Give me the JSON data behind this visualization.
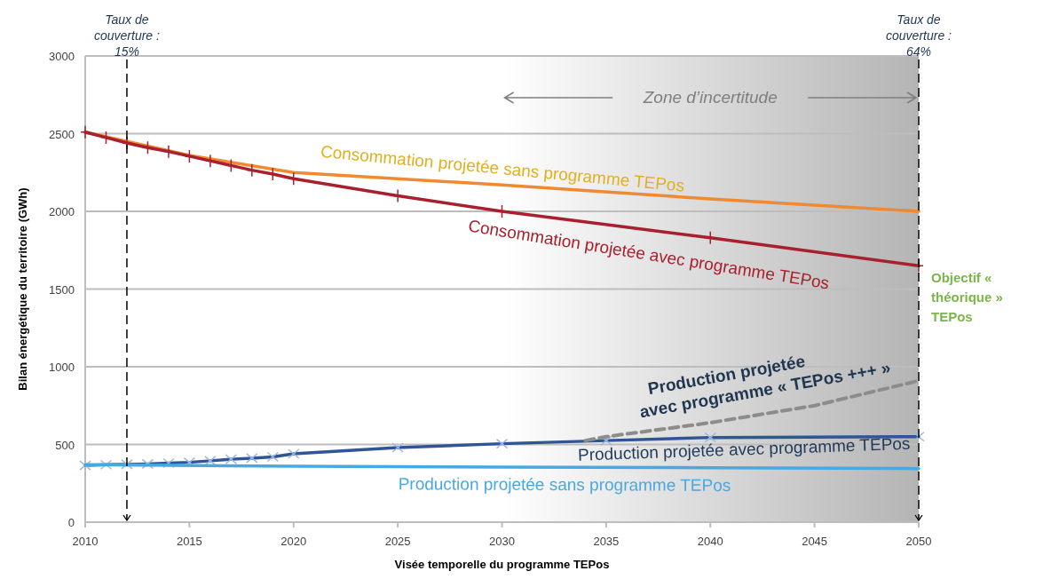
{
  "chart_data": {
    "type": "line",
    "xlabel": "Visée temporelle du programme TEPos",
    "ylabel": "Bilan énergétique du territoire (GWh)",
    "xlim": [
      2010,
      2050
    ],
    "xticks": [
      2010,
      2015,
      2020,
      2025,
      2030,
      2035,
      2040,
      2045,
      2050
    ],
    "ylim": [
      0,
      3000
    ],
    "yticks": [
      0,
      500,
      1000,
      1500,
      2000,
      2500,
      3000
    ],
    "grid": "y",
    "series": [
      {
        "name": "Consommation projetée sans programme TEPos",
        "color": "#f08a30",
        "marker": "none",
        "x": [
          2010,
          2015,
          2020,
          2030,
          2040,
          2050
        ],
        "values": [
          2510,
          2360,
          2250,
          2170,
          2080,
          2000
        ]
      },
      {
        "name": "Consommation projetée avec programme TEPos",
        "color": "#a8202e",
        "marker": "cross",
        "x": [
          2010,
          2011,
          2012,
          2013,
          2014,
          2015,
          2016,
          2017,
          2018,
          2019,
          2020,
          2025,
          2030,
          2040,
          2050
        ],
        "values": [
          2510,
          2475,
          2440,
          2410,
          2385,
          2355,
          2325,
          2295,
          2265,
          2240,
          2210,
          2100,
          2000,
          1830,
          1650
        ]
      },
      {
        "name": "Production projetée avec programme TEPos",
        "color": "#2f5597",
        "marker": "cross",
        "x": [
          2010,
          2011,
          2012,
          2013,
          2014,
          2015,
          2016,
          2017,
          2018,
          2019,
          2020,
          2025,
          2030,
          2035,
          2040,
          2050
        ],
        "values": [
          365,
          370,
          372,
          375,
          380,
          385,
          395,
          405,
          412,
          420,
          440,
          480,
          505,
          525,
          545,
          550
        ]
      },
      {
        "name": "Production projetée sans programme TEPos",
        "color": "#4aa8e0",
        "marker": "none",
        "x": [
          2010,
          2020,
          2030,
          2040,
          2050
        ],
        "values": [
          370,
          360,
          355,
          350,
          345
        ]
      },
      {
        "name": "Production projetée avec programme « TEPos +++ »",
        "color": "#8c8c8c",
        "marker": "none",
        "line_style": "dashed",
        "x": [
          2034,
          2035,
          2040,
          2045,
          2050
        ],
        "values": [
          525,
          550,
          640,
          750,
          910
        ]
      }
    ],
    "ref_lines": [
      {
        "axis": "x",
        "value": 2012,
        "color": "#000000",
        "line_style": "dashed"
      },
      {
        "axis": "x",
        "value": 2050,
        "color": "#000000",
        "line_style": "dashed"
      }
    ],
    "bands": [
      {
        "axis": "x",
        "from": 2030,
        "to": 2050,
        "label": "Zone d’incertitude",
        "color": "#b4b4b4"
      }
    ],
    "annotations": [
      "Taux de couverture : 15%",
      "Taux de couverture : 64%",
      "Objectif « théorique » TEPos"
    ]
  }
}
